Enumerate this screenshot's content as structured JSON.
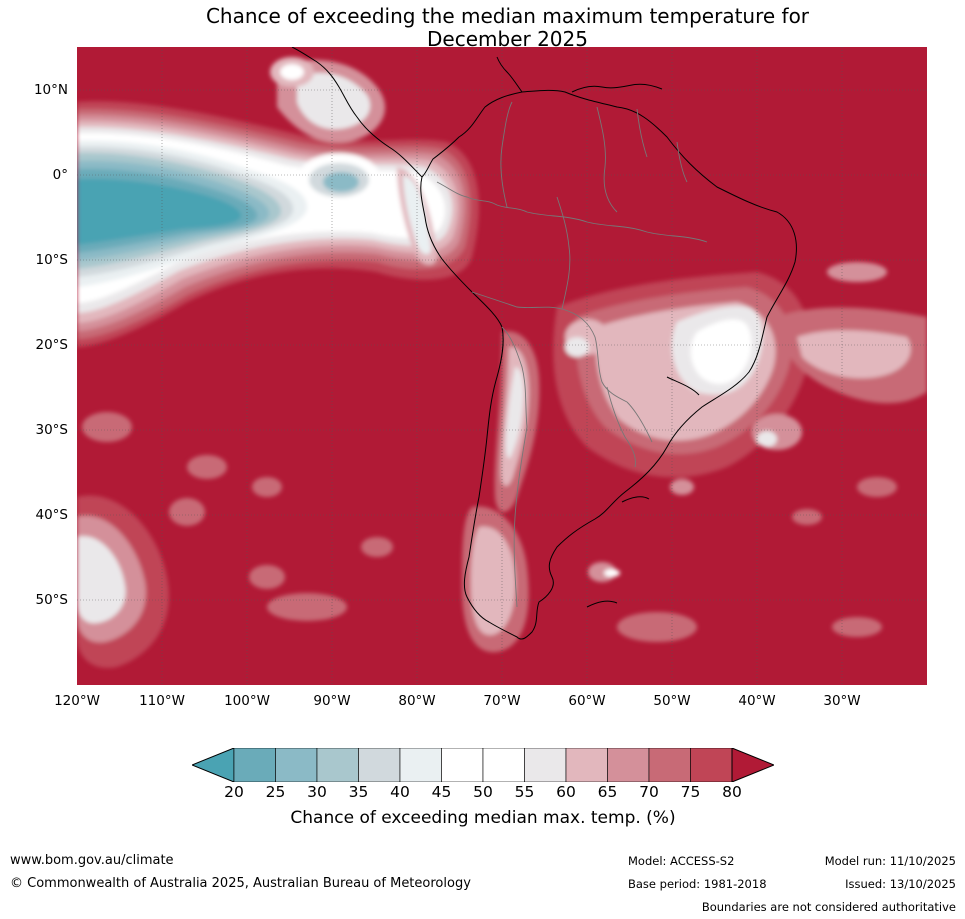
{
  "title": {
    "line1": "Chance of exceeding the median maximum temperature for",
    "line2": "December 2025"
  },
  "map": {
    "region": "South America and surrounding oceans",
    "lat_labels": [
      "10°N",
      "0°",
      "10°S",
      "20°S",
      "30°S",
      "40°S",
      "50°S"
    ],
    "lon_labels": [
      "120°W",
      "110°W",
      "100°W",
      "90°W",
      "80°W",
      "70°W",
      "60°W",
      "50°W",
      "40°W",
      "30°W"
    ],
    "lat_range": [
      -60,
      15
    ],
    "lon_range": [
      -120,
      -20
    ],
    "dominant_category": "80+",
    "colors": {
      "lt20": "#4aa3b3",
      "c20_25": "#6aabb9",
      "c25_30": "#8bbac6",
      "c30_35": "#a9c7cd",
      "c35_40": "#d1d9dd",
      "c40_45": "#eaf0f2",
      "c45_50": "#ffffff",
      "c50_55": "#ffffff",
      "c55_60": "#eae8ea",
      "c60_65": "#e2b7bd",
      "c65_70": "#d4909a",
      "c70_75": "#c86a76",
      "c75_80": "#c04556",
      "gt80": "#b11a36",
      "coast": "#000000",
      "border": "#777777"
    }
  },
  "colorbar": {
    "ticks": [
      "20",
      "25",
      "30",
      "35",
      "40",
      "45",
      "50",
      "55",
      "60",
      "65",
      "70",
      "75",
      "80"
    ],
    "colors": [
      "#6aabb9",
      "#8bbac6",
      "#a9c7cd",
      "#d1d9dd",
      "#eaf0f2",
      "#ffffff",
      "#ffffff",
      "#eae8ea",
      "#e2b7bd",
      "#d4909a",
      "#c86a76",
      "#c04556"
    ],
    "under_color": "#4aa3b3",
    "over_color": "#b11a36",
    "label": "Chance of exceeding median max. temp. (%)"
  },
  "footer": {
    "website": "www.bom.gov.au/climate",
    "copyright": "© Commonwealth of Australia 2025, Australian Bureau of Meteorology",
    "model": "Model: ACCESS-S2",
    "base_period": "Base period: 1981-2018",
    "model_run": "Model run: 11/10/2025",
    "issued": "Issued: 13/10/2025",
    "boundaries_note": "Boundaries are not considered authoritative"
  }
}
